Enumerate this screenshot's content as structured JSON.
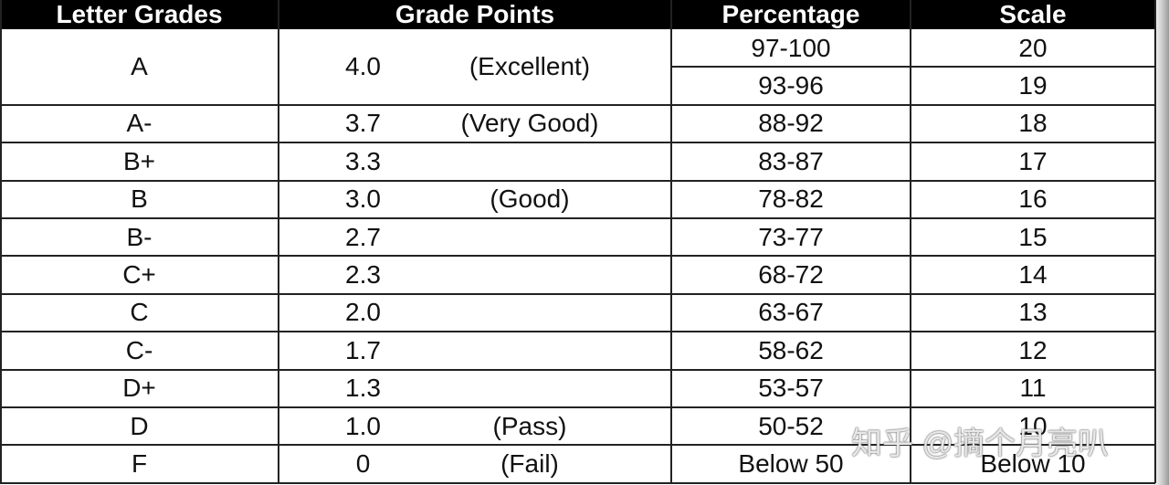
{
  "table": {
    "header": [
      "Letter Grades",
      "Grade Points",
      "Percentage",
      "Scale"
    ],
    "rows": [
      {
        "letter": "A",
        "points": "4.0",
        "description": "(Excellent)",
        "percentages": [
          "97-100",
          "93-96"
        ],
        "scales": [
          "20",
          "19"
        ]
      },
      {
        "letter": "A-",
        "points": "3.7",
        "description": "(Very Good)",
        "percentages": [
          "88-92"
        ],
        "scales": [
          "18"
        ]
      },
      {
        "letter": "B+",
        "points": "3.3",
        "percentages": [
          "83-87"
        ],
        "scales": [
          "17"
        ]
      },
      {
        "letter": "B",
        "points": "3.0",
        "description": "(Good)",
        "percentages": [
          "78-82"
        ],
        "scales": [
          "16"
        ]
      },
      {
        "letter": "B-",
        "points": "2.7",
        "percentages": [
          "73-77"
        ],
        "scales": [
          "15"
        ]
      },
      {
        "letter": "C+",
        "points": "2.3",
        "percentages": [
          "68-72"
        ],
        "scales": [
          "14"
        ]
      },
      {
        "letter": "C",
        "points": "2.0",
        "percentages": [
          "63-67"
        ],
        "scales": [
          "13"
        ]
      },
      {
        "letter": "C-",
        "points": "1.7",
        "percentages": [
          "58-62"
        ],
        "scales": [
          "12"
        ]
      },
      {
        "letter": "D+",
        "points": "1.3",
        "percentages": [
          "53-57"
        ],
        "scales": [
          "11"
        ]
      },
      {
        "letter": "D",
        "points": "1.0",
        "description": "(Pass)",
        "percentages": [
          "50-52"
        ],
        "scales": [
          "10"
        ]
      },
      {
        "letter": "F",
        "points": "0",
        "description": "(Fail)",
        "percentages": [
          "Below 50"
        ],
        "scales": [
          "Below 10"
        ]
      }
    ]
  },
  "watermark": "知乎 @摘个月亮叭"
}
